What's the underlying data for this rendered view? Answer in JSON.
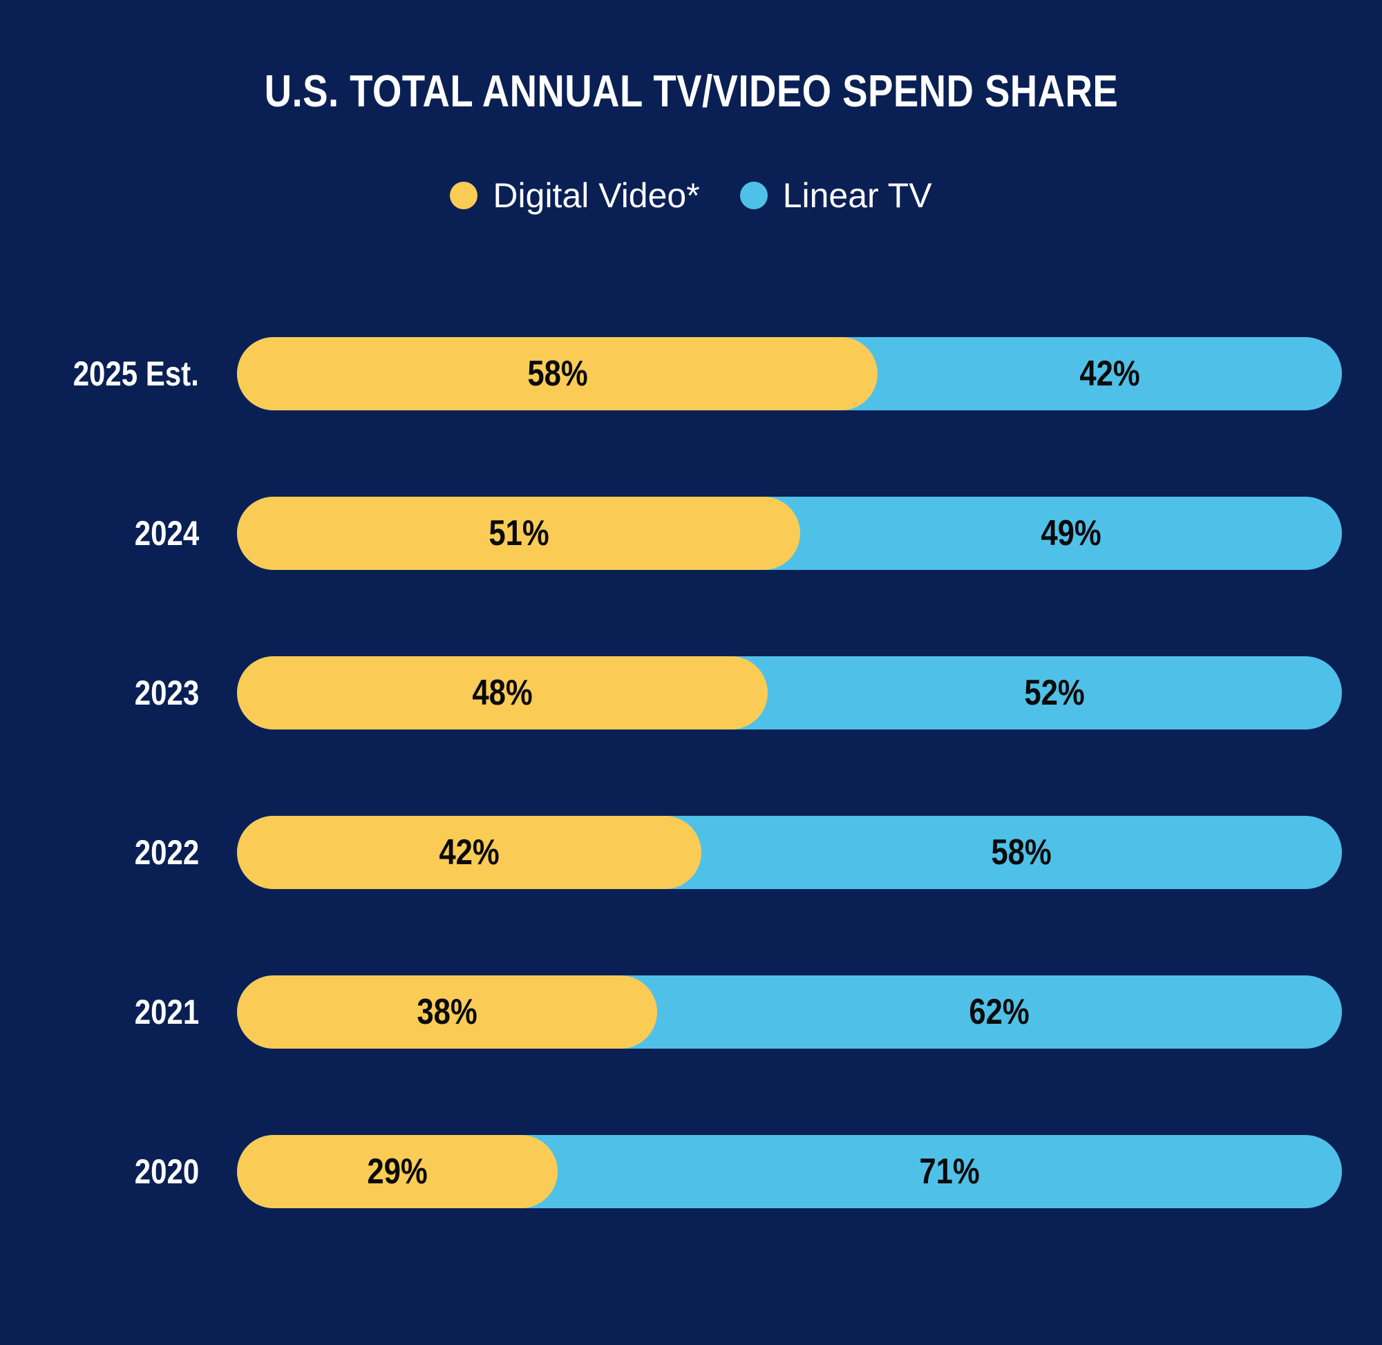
{
  "title": "U.S. TOTAL ANNUAL TV/VIDEO SPEND SHARE",
  "colors": {
    "background": "#0A2055",
    "digital_video": "#FACC55",
    "linear_tv": "#4FC1E8",
    "title_text": "#FFFFFF",
    "year_label_text": "#FFFFFF",
    "bar_value_text": "#0A0A0A"
  },
  "legend": {
    "items": [
      {
        "label": "Digital Video*",
        "color": "#FACC55"
      },
      {
        "label": "Linear TV",
        "color": "#4FC1E8"
      }
    ],
    "position": "top-center"
  },
  "chart_data": {
    "type": "bar",
    "orientation": "horizontal",
    "stacked": true,
    "title": "U.S. TOTAL ANNUAL TV/VIDEO SPEND SHARE",
    "categories": [
      "2025 Est.",
      "2024",
      "2023",
      "2022",
      "2021",
      "2020"
    ],
    "series": [
      {
        "name": "Digital Video*",
        "color": "#FACC55",
        "values": [
          58,
          51,
          48,
          42,
          38,
          29
        ]
      },
      {
        "name": "Linear TV",
        "color": "#4FC1E8",
        "values": [
          42,
          49,
          52,
          58,
          62,
          71
        ]
      }
    ],
    "value_labels": [
      [
        "58%",
        "42%"
      ],
      [
        "51%",
        "49%"
      ],
      [
        "48%",
        "52%"
      ],
      [
        "42%",
        "58%"
      ],
      [
        "38%",
        "62%"
      ],
      [
        "29%",
        "71%"
      ]
    ],
    "unit": "percent",
    "xlim": [
      0,
      100
    ],
    "grid": false,
    "legend_position": "top"
  }
}
